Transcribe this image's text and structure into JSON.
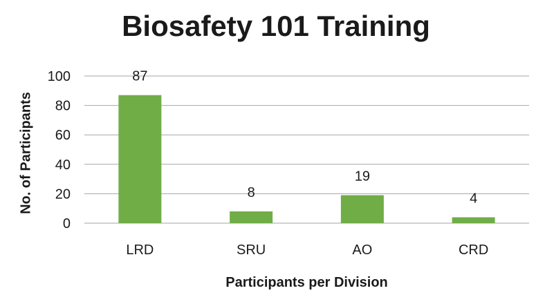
{
  "chart_data": {
    "type": "bar",
    "title": "Biosafety 101 Training",
    "xlabel": "Participants per Division",
    "ylabel": "No. of Participants",
    "categories": [
      "LRD",
      "SRU",
      "AO",
      "CRD"
    ],
    "values": [
      87,
      8,
      19,
      4
    ],
    "data_labels": [
      "87",
      "8",
      "19",
      "4"
    ],
    "ylim": [
      0,
      100
    ],
    "yticks": [
      0,
      20,
      40,
      60,
      80,
      100
    ],
    "grid": true,
    "legend": "none",
    "bar_color": "#70ad47",
    "grid_color": "#a6a6a6"
  }
}
